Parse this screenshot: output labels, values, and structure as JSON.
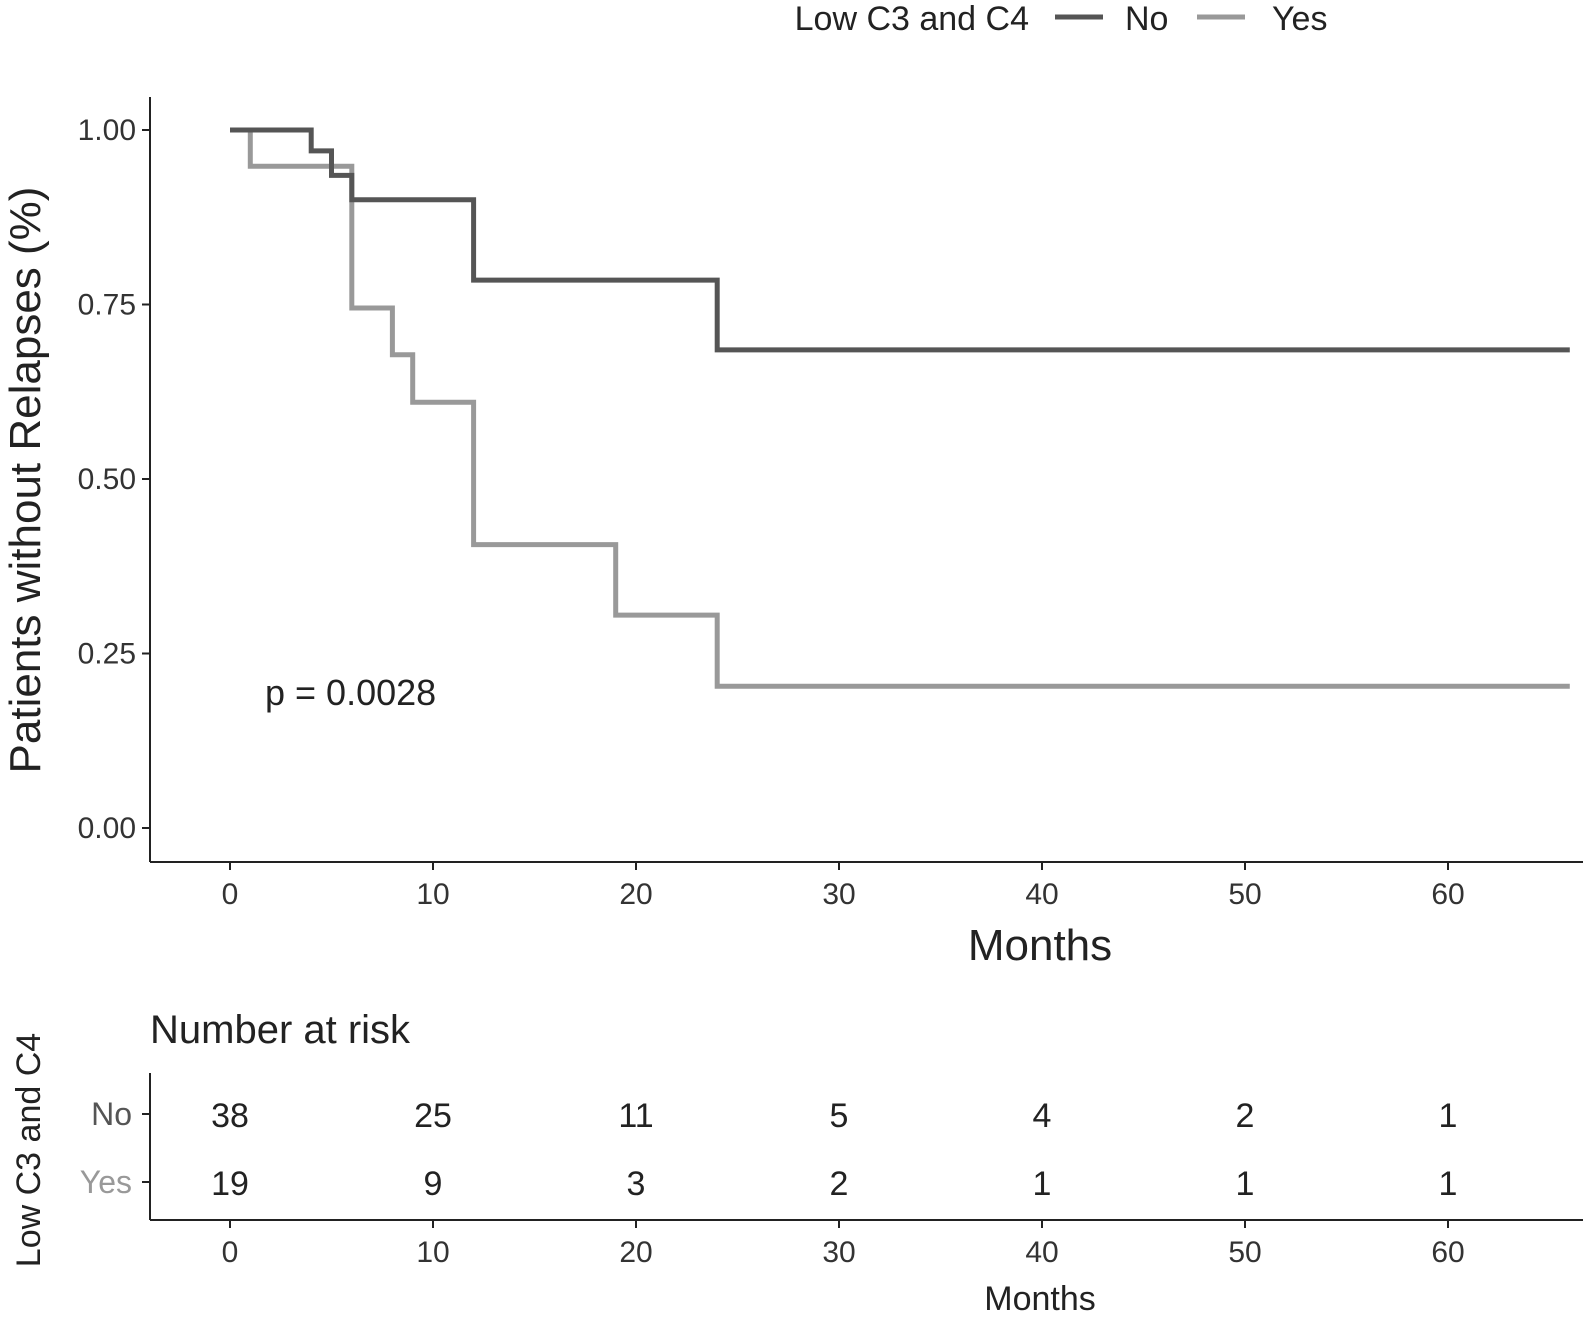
{
  "chart_data": [
    {
      "type": "line",
      "subtype": "kaplan-meier step",
      "title": "",
      "xlabel": "Months",
      "ylabel": "Patients without Relapses (%)",
      "xlim": [
        -4,
        66
      ],
      "ylim": [
        -0.05,
        1.05
      ],
      "x_ticks": [
        0,
        10,
        20,
        30,
        40,
        50,
        60
      ],
      "x_tick_labels": [
        "0",
        "10",
        "20",
        "30",
        "40",
        "50",
        "60"
      ],
      "y_ticks": [
        0,
        0.25,
        0.5,
        0.75,
        1.0
      ],
      "y_tick_labels": [
        "0.00",
        "0.25",
        "0.50",
        "0.75",
        "1.00"
      ],
      "grid": false,
      "legend": {
        "title": "Low C3 and C4",
        "position": "top"
      },
      "annotation": "p = 0.0028",
      "series": [
        {
          "name": "No",
          "color": "#555555",
          "points": [
            [
              0,
              1.0
            ],
            [
              4,
              1.0
            ],
            [
              4,
              0.97
            ],
            [
              5,
              0.97
            ],
            [
              5,
              0.935
            ],
            [
              6,
              0.935
            ],
            [
              6,
              0.9
            ],
            [
              12,
              0.9
            ],
            [
              12,
              0.785
            ],
            [
              24,
              0.785
            ],
            [
              24,
              0.685
            ],
            [
              66,
              0.685
            ]
          ]
        },
        {
          "name": "Yes",
          "color": "#999999",
          "points": [
            [
              0,
              1.0
            ],
            [
              1,
              1.0
            ],
            [
              1,
              0.948
            ],
            [
              6,
              0.948
            ],
            [
              6,
              0.745
            ],
            [
              8,
              0.745
            ],
            [
              8,
              0.678
            ],
            [
              9,
              0.678
            ],
            [
              9,
              0.61
            ],
            [
              12,
              0.61
            ],
            [
              12,
              0.406
            ],
            [
              19,
              0.406
            ],
            [
              19,
              0.305
            ],
            [
              24,
              0.305
            ],
            [
              24,
              0.203
            ],
            [
              66,
              0.203
            ]
          ]
        }
      ]
    },
    {
      "type": "table",
      "title": "Number at risk",
      "xlabel": "Months",
      "ylabel": "Low C3 and C4",
      "x": [
        0,
        10,
        20,
        30,
        40,
        50,
        60
      ],
      "x_tick_labels": [
        "0",
        "10",
        "20",
        "30",
        "40",
        "50",
        "60"
      ],
      "rows": [
        {
          "name": "No",
          "color": "#555555",
          "values": [
            "38",
            "25",
            "11",
            "5",
            "4",
            "2",
            "1"
          ]
        },
        {
          "name": "Yes",
          "color": "#999999",
          "values": [
            "19",
            "9",
            "3",
            "2",
            "1",
            "1",
            "1"
          ]
        }
      ]
    }
  ]
}
